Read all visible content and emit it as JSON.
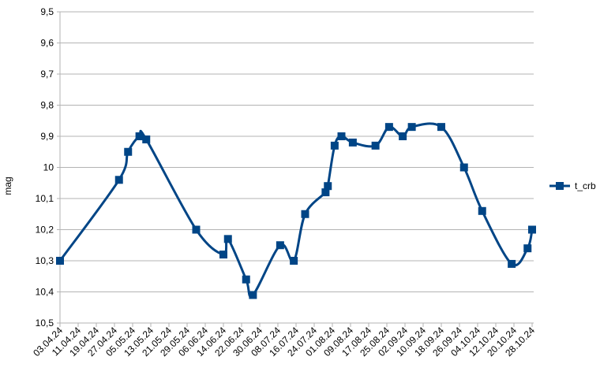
{
  "chart_data": {
    "type": "line",
    "y_label": "mag",
    "x": [
      "03.04.24",
      "29.04.24",
      "03.05.24",
      "08.05.24",
      "11.05.24",
      "02.06.24",
      "14.06.24",
      "16.06.24",
      "24.06.24",
      "27.06.24",
      "09.07.24",
      "15.07.24",
      "20.07.24",
      "29.07.24",
      "30.07.24",
      "02.08.24",
      "05.08.24",
      "10.08.24",
      "20.08.24",
      "26.08.24",
      "01.09.24",
      "05.09.24",
      "18.09.24",
      "28.09.24",
      "06.10.24",
      "19.10.24",
      "26.10.24",
      "28.10.24"
    ],
    "series": [
      {
        "name": "t_crb",
        "color": "#004586",
        "values": [
          10.3,
          10.04,
          9.95,
          9.9,
          9.91,
          10.2,
          10.28,
          10.23,
          10.36,
          10.41,
          10.25,
          10.3,
          10.15,
          10.08,
          10.06,
          9.93,
          9.9,
          9.92,
          9.93,
          9.87,
          9.9,
          9.87,
          9.87,
          10,
          10.14,
          10.31,
          10.26,
          10.2
        ]
      }
    ],
    "xlim": [
      "03.04.24",
      "28.10.24"
    ],
    "xticks": [
      "03.04.24",
      "11.04.24",
      "19.04.24",
      "27.04.24",
      "05.05.24",
      "13.05.24",
      "21.05.24",
      "29.05.24",
      "06.06.24",
      "14.06.24",
      "22.06.24",
      "30.06.24",
      "08.07.24",
      "16.07.24",
      "24.07.24",
      "01.08.24",
      "09.08.24",
      "17.08.24",
      "25.08.24",
      "02.09.24",
      "10.09.24",
      "18.09.24",
      "26.09.24",
      "04.10.24",
      "12.10.24",
      "20.10.24",
      "28.10.24"
    ],
    "ylim": [
      10.5,
      9.5
    ],
    "yticks": [
      {
        "value": 9.5,
        "label": "9,5"
      },
      {
        "value": 9.6,
        "label": "9,6"
      },
      {
        "value": 9.7,
        "label": "9,7"
      },
      {
        "value": 9.8,
        "label": "9,8"
      },
      {
        "value": 9.9,
        "label": "9,9"
      },
      10,
      {
        "value": 10.1,
        "label": "10,1"
      },
      {
        "value": 10.2,
        "label": "10,2"
      },
      {
        "value": 10.3,
        "label": "10,3"
      },
      {
        "value": 10.4,
        "label": "10,4"
      },
      {
        "value": 10.5,
        "label": "10,5"
      }
    ],
    "grid": true,
    "legend": "right"
  }
}
